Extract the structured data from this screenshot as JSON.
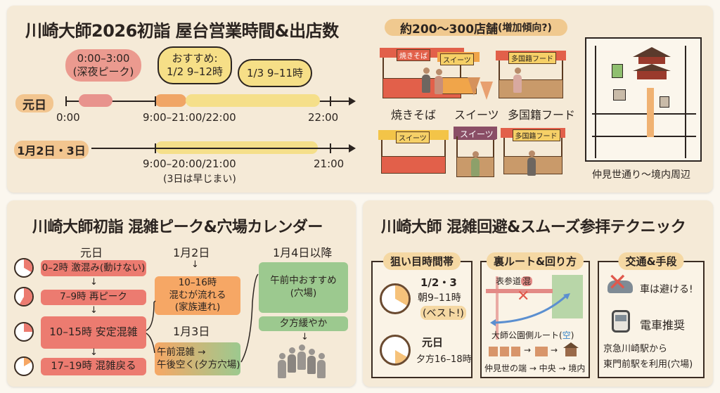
{
  "panel_hours": {
    "title": "川崎大師2026初詣 屋台営業時間&出店数",
    "row1": {
      "label": "元日",
      "tick_labels": [
        "0:00",
        "9:00–21:00/22:00",
        "22:00"
      ],
      "bubble_peak": {
        "line1": "0:00–3:00",
        "line2": "(深夜ピーク)"
      },
      "bubble_recommend": {
        "line1": "おすすめ:",
        "line2": "1/2 9–12時"
      },
      "bubble_recommend2": "1/3 9–11時"
    },
    "row2": {
      "label": "1月2日・3日",
      "range": "9:00–20:00/21:00",
      "note": "(3日は早じまい)",
      "end": "21:00"
    },
    "stores_count": "約200〜300店舗",
    "stores_note": "(増加傾向?)",
    "stall_categories": [
      "焼きそば",
      "スイーツ",
      "多国籍フード"
    ],
    "stall_signs": [
      "焼きそば",
      "スイーツ",
      "多国籍フード",
      "スイーツ",
      "スイーツ",
      "多国籍フード"
    ],
    "map_caption": "仲見世通り〜境内周辺"
  },
  "panel_calendar": {
    "title": "川崎大師初詣 混雑ピーク&穴場カレンダー",
    "day1": {
      "heading": "元日",
      "items": [
        "0–2時 激混み(動けない)",
        "7–9時 再ピーク",
        "10–15時 安定混雑",
        "17–19時 混雑戻る"
      ]
    },
    "day2": {
      "heading": "1月2日",
      "lines": [
        "10–16時",
        "混むが流れる",
        "(家族連れ)"
      ]
    },
    "day3": {
      "heading": "1月3日",
      "lines": [
        "午前混雑 →",
        "午後空く(夕方穴場)"
      ]
    },
    "day4": {
      "heading": "1月4日以降",
      "lines": [
        "午前中おすすめ",
        "(穴場)"
      ],
      "evening": "夕方緩やか"
    }
  },
  "panel_tips": {
    "title": "川崎大師 混雑回避&スムーズ参拝テクニック",
    "time": {
      "heading": "狙い目時間帯",
      "slot1": {
        "date": "1/2・3",
        "time": "朝9–11時",
        "note": "(ベスト!)"
      },
      "slot2": {
        "date": "元日",
        "time": "夕方16–18時"
      }
    },
    "route": {
      "heading": "裏ルート&回り方",
      "main_road": "表参道",
      "main_road_tag": "混",
      "alt_route": "大師公園側ルート(",
      "alt_route_tag": "空",
      "alt_route_end": ")",
      "flow": "仲見世の端 → 中央 → 境内"
    },
    "transport": {
      "heading": "交通&手段",
      "car": "車は避ける!",
      "train": "電車推奨",
      "station_line1": "京急川崎駅から",
      "station_line2": "東門前駅を利用(穴場)"
    }
  },
  "colors": {
    "panel_bg": "#f5ead7",
    "peak_red": "#ec7b70",
    "orange": "#f6a765",
    "yellow": "#f5df8a",
    "green": "#9cc98f",
    "route_blue": "#5b8fd0"
  }
}
